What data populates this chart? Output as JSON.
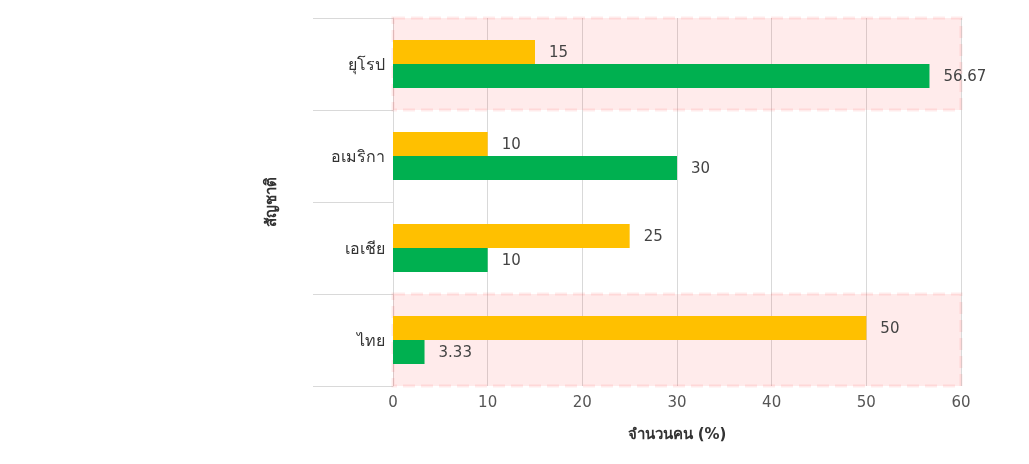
{
  "chart_data": {
    "type": "bar",
    "orientation": "horizontal",
    "xlabel": "จำนวนคน (%)",
    "ylabel": "สัญชาติ",
    "categories": [
      "ยุโรป",
      "อเมริกา",
      "เอเชีย",
      "ไทย"
    ],
    "series": [
      {
        "color": "#ffc000",
        "values": [
          15,
          10,
          25,
          50
        ]
      },
      {
        "color": "#00b050",
        "values": [
          56.67,
          30,
          10,
          3.33
        ]
      }
    ],
    "xlim": [
      0,
      60
    ],
    "xticks": [
      0,
      10,
      20,
      30,
      40,
      50,
      60
    ],
    "grid": "x",
    "data_labels": true,
    "bands": [
      {
        "axis": "y",
        "from": "ยุโรป",
        "to": "ยุโรป",
        "color": "#ff0000"
      },
      {
        "axis": "y",
        "from": "ไทย",
        "to": "ไทย",
        "color": "#ff0000"
      }
    ]
  }
}
